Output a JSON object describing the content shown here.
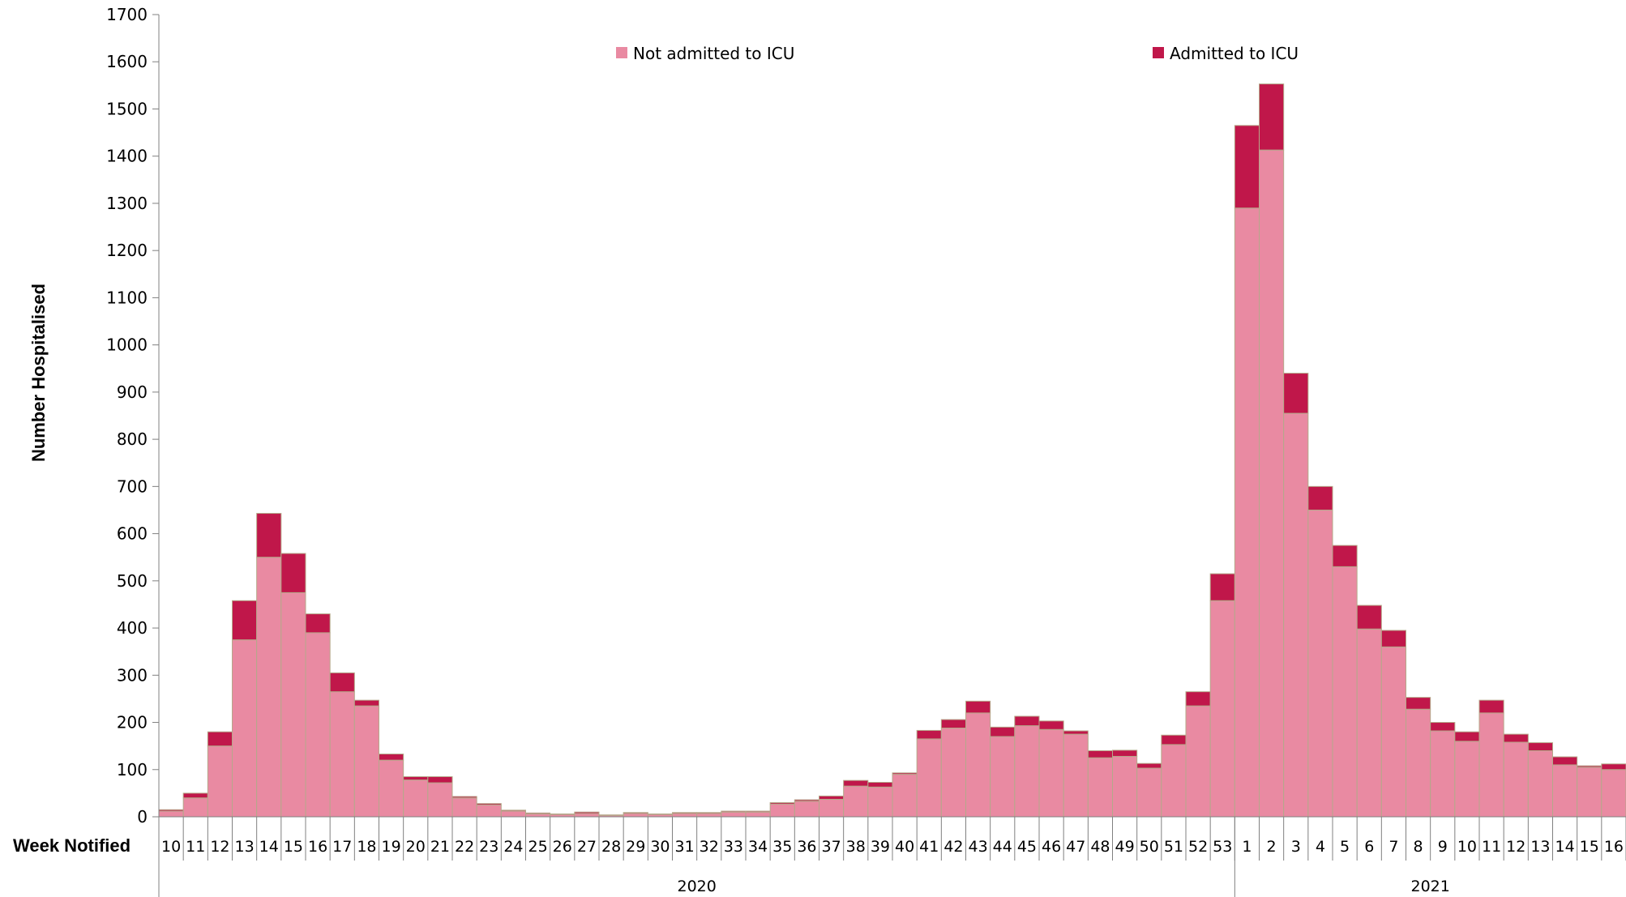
{
  "chart_data": {
    "type": "bar",
    "stacked": true,
    "ylabel": "Number Hospitalised",
    "xlabel": "Week Notified",
    "ylim": [
      0,
      1700
    ],
    "yticks": [
      0,
      100,
      200,
      300,
      400,
      500,
      600,
      700,
      800,
      900,
      1000,
      1100,
      1200,
      1300,
      1400,
      1500,
      1600,
      1700
    ],
    "legend_position": "top",
    "categories": [
      "10",
      "11",
      "12",
      "13",
      "14",
      "15",
      "16",
      "17",
      "18",
      "19",
      "20",
      "21",
      "22",
      "23",
      "24",
      "25",
      "26",
      "27",
      "28",
      "29",
      "30",
      "31",
      "32",
      "33",
      "34",
      "35",
      "36",
      "37",
      "38",
      "39",
      "40",
      "41",
      "42",
      "43",
      "44",
      "45",
      "46",
      "47",
      "48",
      "49",
      "50",
      "51",
      "52",
      "53",
      "1",
      "2",
      "3",
      "4",
      "5",
      "6",
      "7",
      "8",
      "9",
      "10",
      "11",
      "12",
      "13",
      "14",
      "15",
      "16"
    ],
    "year_groups": [
      {
        "label": "2020",
        "count": 44
      },
      {
        "label": "2021",
        "count": 16
      }
    ],
    "series": [
      {
        "name": "Not admitted to ICU",
        "color": "#e98aa2",
        "values": [
          12,
          40,
          150,
          375,
          550,
          475,
          390,
          265,
          235,
          120,
          78,
          72,
          40,
          25,
          12,
          6,
          5,
          7,
          3,
          7,
          5,
          7,
          7,
          10,
          10,
          27,
          33,
          37,
          65,
          63,
          90,
          165,
          188,
          220,
          170,
          193,
          185,
          175,
          125,
          128,
          103,
          153,
          235,
          458,
          1290,
          1413,
          855,
          650,
          530,
          398,
          360,
          228,
          182,
          160,
          220,
          158,
          140,
          110,
          105,
          100
        ]
      },
      {
        "name": "Admitted to ICU",
        "color": "#c0174a",
        "values": [
          3,
          10,
          30,
          83,
          93,
          83,
          40,
          40,
          12,
          13,
          7,
          13,
          3,
          3,
          2,
          2,
          1,
          3,
          1,
          2,
          1,
          2,
          2,
          2,
          2,
          3,
          3,
          7,
          12,
          10,
          3,
          18,
          18,
          25,
          20,
          20,
          18,
          7,
          15,
          13,
          10,
          20,
          30,
          57,
          175,
          140,
          85,
          50,
          45,
          50,
          35,
          25,
          18,
          20,
          27,
          17,
          17,
          17,
          3,
          12
        ]
      }
    ]
  }
}
